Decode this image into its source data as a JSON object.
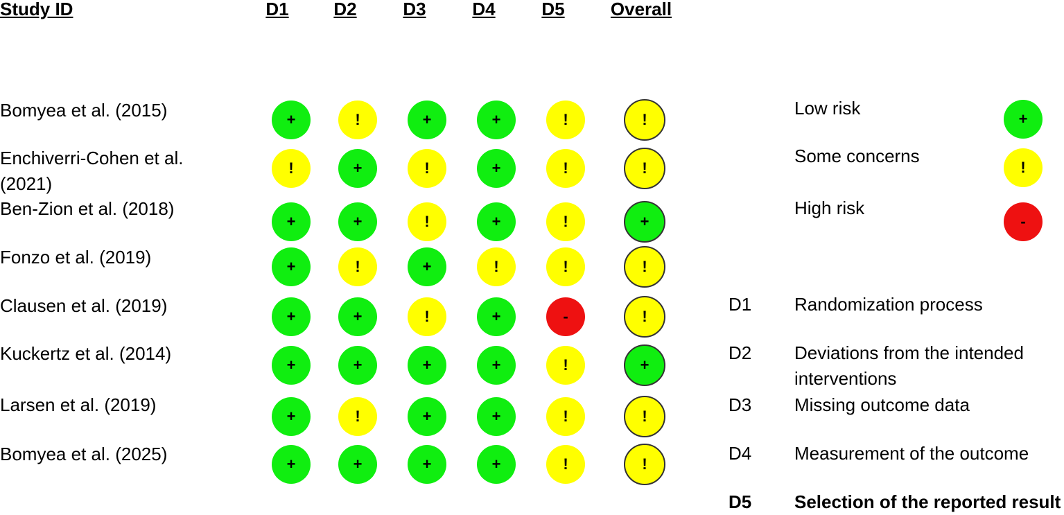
{
  "header": {
    "study_id": "Study ID",
    "domains": [
      "D1",
      "D2",
      "D3",
      "D4",
      "D5"
    ],
    "overall": "Overall"
  },
  "symbols": {
    "low": "+",
    "some": "!",
    "high": "-"
  },
  "colors": {
    "low": "#10ee10",
    "some": "#ffff00",
    "high": "#ee1111"
  },
  "studies": [
    {
      "label": "Bomyea et al. (2015)",
      "ratings": [
        "low",
        "some",
        "low",
        "low",
        "some"
      ],
      "overall": "some"
    },
    {
      "label": "Enchiverri-Cohen et al.\n(2021)",
      "ratings": [
        "some",
        "low",
        "some",
        "low",
        "some"
      ],
      "overall": "some"
    },
    {
      "label": "Ben-Zion et al. (2018)",
      "ratings": [
        "low",
        "low",
        "some",
        "low",
        "some"
      ],
      "overall": "low"
    },
    {
      "label": "Fonzo et al. (2019)",
      "ratings": [
        "low",
        "some",
        "low",
        "some",
        "some"
      ],
      "overall": "some"
    },
    {
      "label": "Clausen et al. (2019)",
      "ratings": [
        "low",
        "low",
        "some",
        "low",
        "high"
      ],
      "overall": "some"
    },
    {
      "label": "Kuckertz et al. (2014)",
      "ratings": [
        "low",
        "low",
        "low",
        "low",
        "some"
      ],
      "overall": "low"
    },
    {
      "label": "Larsen et al. (2019)",
      "ratings": [
        "low",
        "some",
        "low",
        "low",
        "some"
      ],
      "overall": "some"
    },
    {
      "label": "Bomyea et al. (2025)",
      "ratings": [
        "low",
        "low",
        "low",
        "low",
        "some"
      ],
      "overall": "some"
    }
  ],
  "legend": {
    "risk": [
      {
        "label": "Low risk",
        "level": "low"
      },
      {
        "label": "Some concerns",
        "level": "some"
      },
      {
        "label": "High risk",
        "level": "high"
      }
    ],
    "domains": [
      {
        "code": "D1",
        "text": "Randomization process"
      },
      {
        "code": "D2",
        "text": "Deviations from the intended\ninterventions"
      },
      {
        "code": "D3",
        "text": "Missing outcome data"
      },
      {
        "code": "D4",
        "text": "Measurement of the outcome"
      },
      {
        "code": "D5",
        "text": "Selection of the reported result"
      }
    ]
  }
}
